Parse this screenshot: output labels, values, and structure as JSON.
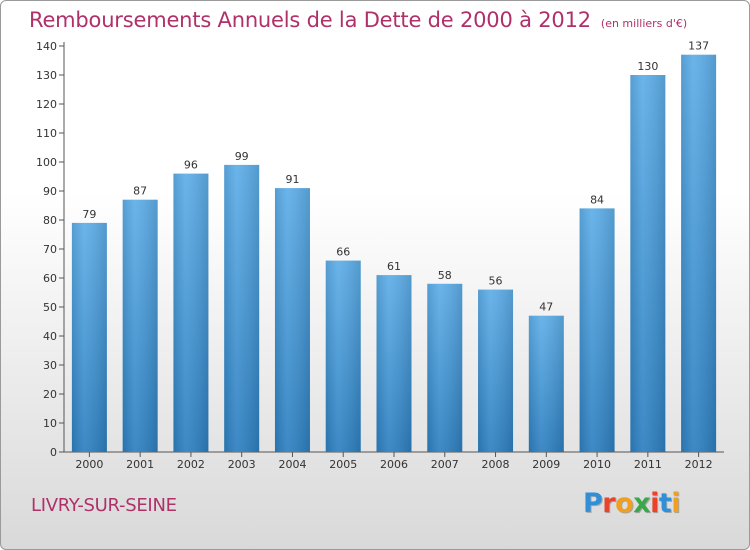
{
  "chart_data": {
    "type": "bar",
    "title": "Remboursements Annuels de la Dette de 2000 à 2012",
    "subtitle": "(en milliers d'€)",
    "categories": [
      "2000",
      "2001",
      "2002",
      "2003",
      "2004",
      "2005",
      "2006",
      "2007",
      "2008",
      "2009",
      "2010",
      "2011",
      "2012"
    ],
    "values": [
      79,
      87,
      96,
      99,
      91,
      66,
      61,
      58,
      56,
      47,
      84,
      130,
      137
    ],
    "xlabel": "",
    "ylabel": "",
    "ylim": [
      0,
      140
    ],
    "yticks": [
      0,
      10,
      20,
      30,
      40,
      50,
      60,
      70,
      80,
      90,
      100,
      110,
      120,
      130,
      140
    ],
    "grid": false,
    "bar_color_top": "#5eaee8",
    "bar_color_bottom": "#2d7fc0"
  },
  "footer": {
    "town": "LIVRY-SUR-SEINE"
  },
  "logo": {
    "letters": [
      {
        "char": "P",
        "color": "#2f8fd8"
      },
      {
        "char": "r",
        "color": "#e8442a"
      },
      {
        "char": "o",
        "color": "#f0a020"
      },
      {
        "char": "x",
        "color": "#3aa84a"
      },
      {
        "char": "i",
        "color": "#e8442a"
      },
      {
        "char": "t",
        "color": "#2f8fd8"
      },
      {
        "char": "i",
        "color": "#f0a020"
      }
    ]
  },
  "colors": {
    "title": "#b0306a",
    "axis": "#555555"
  }
}
